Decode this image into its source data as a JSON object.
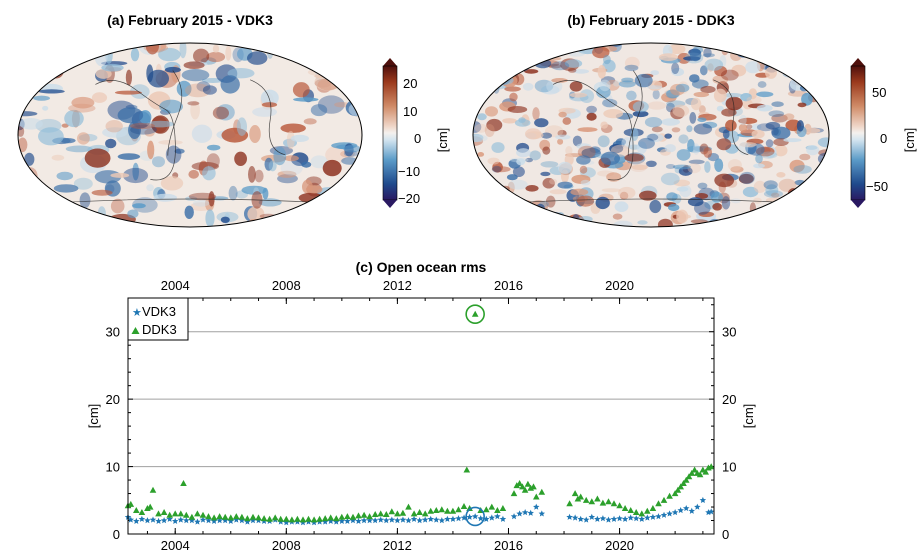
{
  "panels": [
    {
      "title": "(a) February 2015 - VDK3",
      "colorbar": {
        "ticks": [
          "20",
          "10",
          "0",
          "−10",
          "−20"
        ],
        "unit": "[cm]"
      }
    },
    {
      "title": "(b) February 2015 - DDK3",
      "colorbar": {
        "ticks": [
          "50",
          "0",
          "−50"
        ],
        "unit": "[cm]"
      }
    }
  ],
  "chart_data": {
    "type": "scatter",
    "title": "(c) Open ocean rms",
    "xlabel": "",
    "ylabel": "[cm]",
    "ylabel_right": "[cm]",
    "x_ticks": [
      "2004",
      "2008",
      "2012",
      "2016",
      "2020"
    ],
    "y_ticks": [
      "0",
      "10",
      "20",
      "30"
    ],
    "xlim": [
      2002.3,
      2023.4
    ],
    "ylim": [
      0,
      35
    ],
    "grid": "horizontal",
    "legend": "top-left",
    "colors": {
      "VDK3": "#1f77b4",
      "DDK3": "#2ca02c"
    },
    "series": [
      {
        "name": "VDK3",
        "marker": "star",
        "x": [
          2002.3,
          2002.4,
          2002.6,
          2002.8,
          2003.0,
          2003.2,
          2003.4,
          2003.6,
          2003.8,
          2004.0,
          2004.2,
          2004.4,
          2004.6,
          2004.8,
          2005.0,
          2005.2,
          2005.4,
          2005.6,
          2005.8,
          2006.0,
          2006.2,
          2006.4,
          2006.6,
          2006.8,
          2007.0,
          2007.2,
          2007.4,
          2007.6,
          2007.8,
          2008.0,
          2008.2,
          2008.4,
          2008.6,
          2008.8,
          2009.0,
          2009.2,
          2009.4,
          2009.6,
          2009.8,
          2010.0,
          2010.2,
          2010.4,
          2010.6,
          2010.8,
          2011.0,
          2011.2,
          2011.4,
          2011.6,
          2011.8,
          2012.0,
          2012.2,
          2012.4,
          2012.6,
          2012.8,
          2013.0,
          2013.2,
          2013.4,
          2013.6,
          2013.8,
          2014.0,
          2014.2,
          2014.4,
          2014.6,
          2014.8,
          2015.0,
          2015.2,
          2015.4,
          2015.6,
          2015.8,
          2016.2,
          2016.4,
          2016.6,
          2016.8,
          2017.0,
          2017.2,
          2018.2,
          2018.4,
          2018.6,
          2018.8,
          2019.0,
          2019.2,
          2019.4,
          2019.6,
          2019.8,
          2020.0,
          2020.2,
          2020.4,
          2020.6,
          2020.8,
          2021.0,
          2021.2,
          2021.4,
          2021.6,
          2021.8,
          2022.0,
          2022.2,
          2022.4,
          2022.6,
          2022.8,
          2023.0,
          2023.2,
          2023.3
        ],
        "y": [
          2.5,
          2.1,
          1.9,
          2.2,
          2.0,
          2.1,
          1.9,
          2.0,
          2.2,
          1.9,
          2.1,
          2.0,
          2.0,
          1.8,
          2.1,
          2.0,
          1.9,
          2.0,
          2.0,
          1.9,
          2.1,
          2.0,
          1.8,
          2.0,
          2.0,
          1.9,
          1.9,
          2.1,
          1.8,
          1.7,
          1.8,
          1.8,
          1.7,
          1.8,
          1.7,
          1.8,
          1.8,
          1.9,
          1.8,
          1.9,
          1.9,
          2.0,
          1.9,
          2.0,
          2.0,
          2.0,
          2.1,
          2.0,
          2.1,
          2.0,
          2.1,
          2.0,
          2.2,
          2.0,
          2.1,
          2.2,
          2.1,
          2.0,
          2.2,
          2.2,
          2.3,
          2.4,
          2.5,
          2.6,
          2.3,
          2.2,
          2.4,
          2.6,
          2.2,
          2.6,
          3.0,
          3.2,
          3.1,
          4.0,
          3.0,
          2.5,
          2.4,
          2.2,
          2.1,
          2.5,
          2.2,
          2.3,
          2.1,
          2.2,
          2.3,
          2.2,
          2.4,
          2.3,
          2.2,
          2.4,
          2.5,
          2.6,
          2.8,
          3.0,
          3.2,
          3.5,
          3.8,
          3.4,
          4.0,
          5.0,
          3.2,
          3.3
        ]
      },
      {
        "name": "DDK3",
        "marker": "triangle",
        "x": [
          2002.3,
          2002.4,
          2002.6,
          2002.8,
          2003.0,
          2003.1,
          2003.2,
          2003.4,
          2003.6,
          2003.8,
          2004.0,
          2004.2,
          2004.3,
          2004.4,
          2004.6,
          2004.8,
          2005.0,
          2005.2,
          2005.4,
          2005.6,
          2005.8,
          2006.0,
          2006.2,
          2006.4,
          2006.6,
          2006.8,
          2007.0,
          2007.2,
          2007.4,
          2007.6,
          2007.8,
          2008.0,
          2008.2,
          2008.4,
          2008.6,
          2008.8,
          2009.0,
          2009.2,
          2009.4,
          2009.6,
          2009.8,
          2010.0,
          2010.2,
          2010.4,
          2010.6,
          2010.8,
          2011.0,
          2011.2,
          2011.4,
          2011.6,
          2011.8,
          2012.0,
          2012.2,
          2012.4,
          2012.6,
          2012.8,
          2013.0,
          2013.2,
          2013.4,
          2013.6,
          2013.8,
          2014.0,
          2014.2,
          2014.4,
          2014.5,
          2014.6,
          2014.8,
          2015.0,
          2015.2,
          2015.4,
          2015.6,
          2015.8,
          2016.2,
          2016.3,
          2016.4,
          2016.5,
          2016.6,
          2016.7,
          2016.8,
          2016.9,
          2017.0,
          2017.2,
          2018.2,
          2018.4,
          2018.5,
          2018.6,
          2018.8,
          2019.0,
          2019.2,
          2019.4,
          2019.6,
          2019.8,
          2020.0,
          2020.2,
          2020.4,
          2020.6,
          2020.8,
          2021.0,
          2021.2,
          2021.4,
          2021.6,
          2021.8,
          2022.0,
          2022.1,
          2022.2,
          2022.3,
          2022.4,
          2022.5,
          2022.6,
          2022.7,
          2022.8,
          2022.9,
          2023.0,
          2023.1,
          2023.2,
          2023.3
        ],
        "y": [
          4.2,
          4.4,
          3.5,
          3.2,
          3.8,
          4.0,
          6.5,
          3.0,
          3.2,
          2.8,
          3.0,
          3.0,
          7.5,
          2.8,
          2.5,
          3.0,
          2.8,
          2.6,
          2.4,
          2.6,
          2.5,
          2.4,
          2.6,
          2.5,
          2.3,
          2.5,
          2.4,
          2.3,
          2.2,
          2.4,
          2.2,
          2.2,
          2.1,
          2.2,
          2.1,
          2.2,
          2.1,
          2.2,
          2.3,
          2.4,
          2.3,
          2.5,
          2.6,
          2.5,
          2.7,
          2.8,
          2.6,
          2.9,
          3.0,
          2.9,
          3.3,
          3.0,
          3.1,
          4.0,
          3.0,
          3.2,
          3.0,
          3.4,
          3.5,
          3.6,
          3.4,
          3.4,
          3.6,
          4.1,
          9.5,
          3.8,
          32.6,
          3.5,
          3.6,
          4.0,
          3.5,
          3.8,
          6.0,
          7.2,
          7.5,
          7.0,
          6.5,
          7.4,
          6.8,
          7.0,
          5.5,
          6.2,
          4.5,
          6.0,
          5.2,
          5.5,
          5.0,
          4.8,
          5.2,
          4.6,
          4.8,
          4.5,
          4.2,
          3.8,
          3.5,
          3.2,
          3.0,
          3.4,
          3.8,
          4.5,
          5.0,
          5.6,
          6.0,
          6.5,
          7.0,
          7.5,
          8.0,
          8.5,
          9.0,
          9.5,
          9.0,
          8.8,
          9.5,
          9.2,
          9.8,
          10.0
        ]
      }
    ],
    "highlights": [
      {
        "series": "DDK3",
        "x": 2014.8,
        "y": 32.6,
        "shape": "circle"
      },
      {
        "series": "VDK3",
        "x": 2014.8,
        "y": 2.6,
        "shape": "circle"
      }
    ]
  }
}
